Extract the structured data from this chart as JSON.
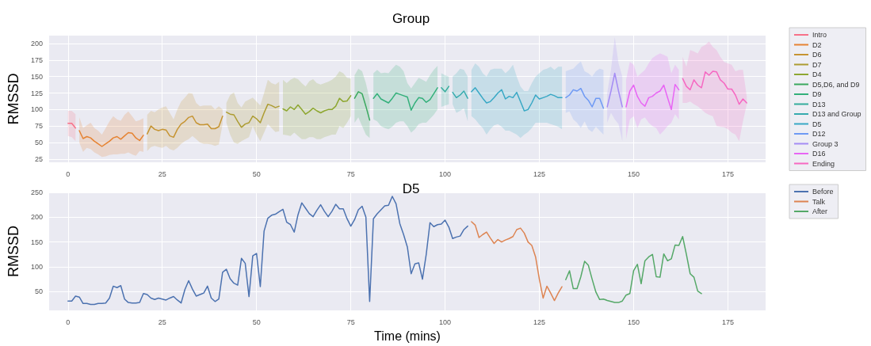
{
  "chart_data": [
    {
      "type": "line",
      "title": "Group",
      "ylabel": "RMSSD",
      "xlim": [
        -5,
        185
      ],
      "xticks": [
        0,
        25,
        50,
        75,
        100,
        125,
        150,
        175
      ],
      "ylim": [
        20,
        212
      ],
      "yticks": [
        25,
        50,
        75,
        100,
        125,
        150,
        175,
        200
      ],
      "grid": true,
      "legend": "right",
      "marker": "none",
      "line_style": "solid",
      "series": [
        {
          "name": "Intro",
          "color": "#f77189",
          "x": [
            0,
            1,
            2
          ],
          "values": [
            79,
            79,
            72
          ],
          "lower": [
            60,
            58,
            52
          ],
          "upper": [
            98,
            98,
            93
          ]
        },
        {
          "name": "D2",
          "color": "#e68332",
          "x": [
            3,
            4,
            5,
            6,
            7,
            8,
            9,
            10,
            11,
            12,
            13,
            14,
            15,
            16,
            17,
            18,
            19,
            20
          ],
          "values": [
            68,
            56,
            59,
            57,
            52,
            48,
            44,
            48,
            52,
            57,
            59,
            55,
            60,
            65,
            64,
            57,
            53,
            61
          ],
          "lower": [
            50,
            36,
            42,
            40,
            35,
            32,
            28,
            29,
            31,
            32,
            32,
            33,
            33,
            35,
            32,
            30,
            37,
            36
          ],
          "upper": [
            88,
            72,
            76,
            80,
            72,
            68,
            62,
            72,
            82,
            90,
            85,
            83,
            92,
            97,
            90,
            82,
            84,
            87
          ]
        },
        {
          "name": "D6",
          "color": "#c69432",
          "x": [
            21,
            22,
            23,
            24,
            25,
            26,
            27,
            28,
            29,
            30,
            31,
            32,
            33,
            34,
            35,
            36,
            37,
            38,
            39,
            40,
            41
          ],
          "values": [
            63,
            75,
            70,
            68,
            70,
            69,
            60,
            58,
            70,
            78,
            82,
            88,
            90,
            80,
            77,
            77,
            78,
            71,
            71,
            74,
            90
          ],
          "lower": [
            37,
            43,
            45,
            43,
            42,
            45,
            40,
            38,
            42,
            48,
            52,
            55,
            60,
            55,
            50,
            48,
            48,
            47,
            45,
            47,
            78
          ],
          "upper": [
            92,
            98,
            96,
            100,
            103,
            105,
            95,
            85,
            100,
            112,
            118,
            125,
            124,
            110,
            105,
            106,
            106,
            106,
            100,
            105,
            100
          ]
        },
        {
          "name": "D7",
          "color": "#ad9c31",
          "x": [
            42,
            43,
            44,
            45,
            46,
            47,
            48,
            49,
            50,
            51,
            52,
            53,
            54,
            55,
            56
          ],
          "values": [
            96,
            93,
            92,
            82,
            73,
            78,
            80,
            90,
            86,
            80,
            95,
            108,
            106,
            103,
            105
          ],
          "lower": [
            80,
            62,
            50,
            48,
            52,
            55,
            58,
            75,
            62,
            52,
            65,
            78,
            72,
            66,
            67
          ],
          "upper": [
            110,
            122,
            126,
            110,
            103,
            112,
            115,
            118,
            112,
            106,
            125,
            145,
            140,
            138,
            142
          ]
        },
        {
          "name": "D4",
          "color": "#8ea731",
          "x": [
            57,
            58,
            59,
            60,
            61,
            62,
            63,
            64,
            65,
            66,
            67,
            68,
            69,
            70,
            71,
            72,
            73,
            74,
            75
          ],
          "values": [
            101,
            98,
            104,
            100,
            107,
            100,
            93,
            97,
            102,
            98,
            95,
            98,
            100,
            100,
            105,
            117,
            112,
            113,
            121
          ],
          "lower": [
            62,
            61,
            60,
            65,
            60,
            55,
            55,
            58,
            58,
            55,
            55,
            58,
            60,
            62,
            62,
            75,
            72,
            80,
            90
          ],
          "upper": [
            145,
            140,
            145,
            148,
            146,
            140,
            135,
            143,
            146,
            140,
            138,
            140,
            142,
            145,
            150,
            158,
            155,
            148,
            147
          ]
        },
        {
          "name": "D5,D6, and D9",
          "color": "#3aa85e",
          "x": [
            76,
            77,
            78,
            79,
            80
          ],
          "values": [
            117,
            127,
            124,
            105,
            84
          ],
          "lower": [
            80,
            88,
            75,
            62,
            57
          ],
          "upper": [
            152,
            162,
            158,
            140,
            115
          ]
        },
        {
          "name": "D9",
          "color": "#33b07a",
          "x": [
            81,
            82,
            83,
            84,
            85,
            86,
            87,
            88,
            89,
            90,
            91,
            92,
            93,
            94,
            95,
            96,
            97,
            98
          ],
          "values": [
            117,
            124,
            116,
            113,
            110,
            117,
            125,
            123,
            121,
            119,
            99,
            110,
            118,
            117,
            111,
            115,
            124,
            133
          ],
          "lower": [
            85,
            82,
            75,
            72,
            70,
            74,
            80,
            82,
            82,
            75,
            65,
            70,
            78,
            80,
            80,
            86,
            92,
            100
          ],
          "upper": [
            155,
            160,
            155,
            156,
            155,
            162,
            168,
            165,
            158,
            140,
            132,
            140,
            148,
            145,
            142,
            152,
            160,
            166
          ]
        },
        {
          "name": "D13",
          "color": "#35ad9c",
          "x": [
            99,
            100,
            101
          ],
          "values": [
            133,
            127,
            135
          ],
          "lower": [
            104,
            106,
            108
          ],
          "upper": [
            155,
            152,
            150
          ]
        },
        {
          "name": "D13 and Group",
          "color": "#36abae",
          "x": [
            102,
            103,
            104,
            105,
            106
          ],
          "values": [
            126,
            118,
            122,
            128,
            117
          ],
          "lower": [
            108,
            95,
            98,
            102,
            82
          ],
          "upper": [
            150,
            155,
            162,
            160,
            150
          ]
        },
        {
          "name": "D5",
          "color": "#38a8c5",
          "x": [
            107,
            108,
            109,
            110,
            111,
            112,
            113,
            114,
            115,
            116,
            117,
            118,
            119,
            120,
            121,
            122,
            123,
            124,
            125,
            126,
            127,
            128,
            129,
            130,
            131
          ],
          "values": [
            127,
            133,
            125,
            117,
            110,
            112,
            118,
            125,
            130,
            116,
            120,
            118,
            126,
            112,
            98,
            100,
            110,
            122,
            116,
            118,
            120,
            123,
            121,
            118,
            118
          ],
          "lower": [
            90,
            85,
            78,
            72,
            62,
            70,
            76,
            78,
            74,
            68,
            68,
            65,
            62,
            57,
            62,
            66,
            72,
            80,
            80,
            80,
            80,
            78,
            76,
            74,
            70
          ],
          "upper": [
            160,
            170,
            165,
            155,
            150,
            160,
            162,
            162,
            162,
            155,
            160,
            168,
            150,
            135,
            128,
            128,
            140,
            150,
            155,
            160,
            162,
            165,
            160,
            165,
            165
          ]
        },
        {
          "name": "D12",
          "color": "#6e9af4",
          "x": [
            132,
            133,
            134,
            135,
            136,
            137,
            138,
            139,
            140,
            141,
            142
          ],
          "values": [
            118,
            122,
            130,
            128,
            132,
            120,
            114,
            104,
            117,
            117,
            102
          ],
          "lower": [
            95,
            97,
            85,
            80,
            72,
            82,
            70,
            66,
            74,
            68,
            62
          ],
          "upper": [
            158,
            160,
            162,
            168,
            173,
            158,
            155,
            150,
            158,
            162,
            160
          ]
        },
        {
          "name": "Group 3",
          "color": "#a48cf4",
          "x": [
            143,
            144,
            145,
            146,
            147
          ],
          "values": [
            104,
            128,
            155,
            128,
            104
          ],
          "lower": [
            80,
            95,
            85,
            78,
            52
          ],
          "upper": [
            125,
            160,
            210,
            170,
            150
          ]
        },
        {
          "name": "D16",
          "color": "#e866f4",
          "x": [
            148,
            149,
            150,
            151,
            152,
            153,
            154,
            155,
            156,
            157,
            158,
            159,
            160,
            161,
            162
          ],
          "values": [
            104,
            128,
            137,
            120,
            110,
            105,
            118,
            120,
            125,
            128,
            137,
            118,
            100,
            138,
            130
          ],
          "lower": [
            55,
            85,
            90,
            72,
            85,
            88,
            80,
            75,
            72,
            62,
            68,
            75,
            80,
            93,
            85
          ],
          "upper": [
            145,
            172,
            168,
            150,
            155,
            160,
            170,
            178,
            182,
            185,
            183,
            180,
            155,
            168,
            160
          ]
        },
        {
          "name": "Ending",
          "color": "#f668c2",
          "x": [
            163,
            164,
            165,
            166,
            167,
            168,
            169,
            170,
            171,
            172,
            173,
            174,
            175,
            176,
            177,
            178,
            179,
            180
          ],
          "values": [
            147,
            135,
            130,
            145,
            137,
            133,
            157,
            152,
            158,
            157,
            145,
            140,
            131,
            131,
            122,
            108,
            116,
            110
          ],
          "lower": [
            110,
            110,
            112,
            108,
            105,
            100,
            95,
            92,
            90,
            75,
            74,
            73,
            70,
            65,
            62,
            52,
            82,
            108
          ],
          "upper": [
            180,
            165,
            190,
            188,
            185,
            195,
            198,
            203,
            195,
            190,
            180,
            172,
            170,
            168,
            158,
            160,
            160,
            120
          ]
        }
      ]
    },
    {
      "type": "line",
      "title": "D5",
      "xlabel": "Time (mins)",
      "ylabel": "RMSSD",
      "xlim": [
        -5,
        185
      ],
      "xticks": [
        0,
        25,
        50,
        75,
        100,
        125,
        150,
        175
      ],
      "ylim": [
        12,
        250
      ],
      "yticks": [
        50,
        100,
        150,
        200,
        250
      ],
      "grid": true,
      "legend": "right",
      "marker": "none",
      "line_style": "solid",
      "series": [
        {
          "name": "Before",
          "color": "#4c72b0",
          "x": [
            0,
            1,
            2,
            3,
            4,
            5,
            6,
            7,
            8,
            9,
            10,
            11,
            12,
            13,
            14,
            15,
            16,
            17,
            18,
            19,
            20,
            21,
            22,
            23,
            24,
            25,
            26,
            27,
            28,
            29,
            30,
            31,
            32,
            33,
            34,
            35,
            36,
            37,
            38,
            39,
            40,
            41,
            42,
            43,
            44,
            45,
            46,
            47,
            48,
            49,
            50,
            51,
            52,
            53,
            54,
            55,
            56,
            57,
            58,
            59,
            60,
            61,
            62,
            63,
            64,
            65,
            66,
            67,
            68,
            69,
            70,
            71,
            72,
            73,
            74,
            75,
            76,
            77,
            78,
            79,
            80,
            81,
            82,
            83,
            84,
            85,
            86,
            87,
            88,
            89,
            90,
            91,
            92,
            93,
            94,
            95,
            96,
            97,
            98,
            99,
            100,
            101,
            102,
            103,
            104,
            105,
            106
          ],
          "values": [
            31,
            31,
            41,
            39,
            26,
            26,
            24,
            24,
            26,
            26,
            27,
            37,
            61,
            58,
            62,
            35,
            28,
            27,
            27,
            28,
            46,
            44,
            37,
            34,
            37,
            35,
            33,
            37,
            40,
            33,
            27,
            54,
            72,
            55,
            41,
            44,
            47,
            61,
            37,
            30,
            35,
            89,
            95,
            76,
            67,
            63,
            117,
            107,
            40,
            122,
            127,
            60,
            172,
            198,
            204,
            206,
            211,
            216,
            190,
            185,
            170,
            205,
            229,
            218,
            207,
            201,
            214,
            225,
            212,
            201,
            212,
            226,
            217,
            217,
            197,
            182,
            195,
            215,
            222,
            200,
            30,
            197,
            207,
            215,
            223,
            224,
            242,
            227,
            187,
            165,
            140,
            86,
            106,
            108,
            75,
            125,
            189,
            181,
            185,
            186,
            194,
            180,
            157,
            160,
            162,
            175,
            182
          ]
        },
        {
          "name": "Talk",
          "color": "#dd8452",
          "x": [
            107,
            108,
            109,
            110,
            111,
            112,
            113,
            114,
            115,
            116,
            117,
            118,
            119,
            120,
            121,
            122,
            123,
            124,
            125,
            126,
            127,
            128,
            129,
            130,
            131
          ],
          "values": [
            191,
            184,
            159,
            165,
            170,
            158,
            147,
            155,
            150,
            154,
            157,
            161,
            175,
            178,
            168,
            150,
            143,
            120,
            75,
            37,
            61,
            47,
            32,
            47,
            60
          ]
        },
        {
          "name": "After",
          "color": "#55a868",
          "x": [
            132,
            133,
            134,
            135,
            136,
            137,
            138,
            139,
            140,
            141,
            142,
            143,
            144,
            145,
            146,
            147,
            148,
            149,
            150,
            151,
            152,
            153,
            154,
            155,
            156,
            157,
            158,
            159,
            160,
            161,
            162,
            163,
            164,
            165,
            166,
            167,
            168
          ],
          "values": [
            74,
            92,
            56,
            56,
            80,
            111,
            103,
            75,
            49,
            34,
            35,
            32,
            30,
            28,
            28,
            31,
            43,
            46,
            92,
            105,
            66,
            112,
            120,
            125,
            80,
            79,
            126,
            112,
            116,
            144,
            143,
            161,
            125,
            86,
            79,
            51,
            46
          ]
        }
      ]
    }
  ]
}
